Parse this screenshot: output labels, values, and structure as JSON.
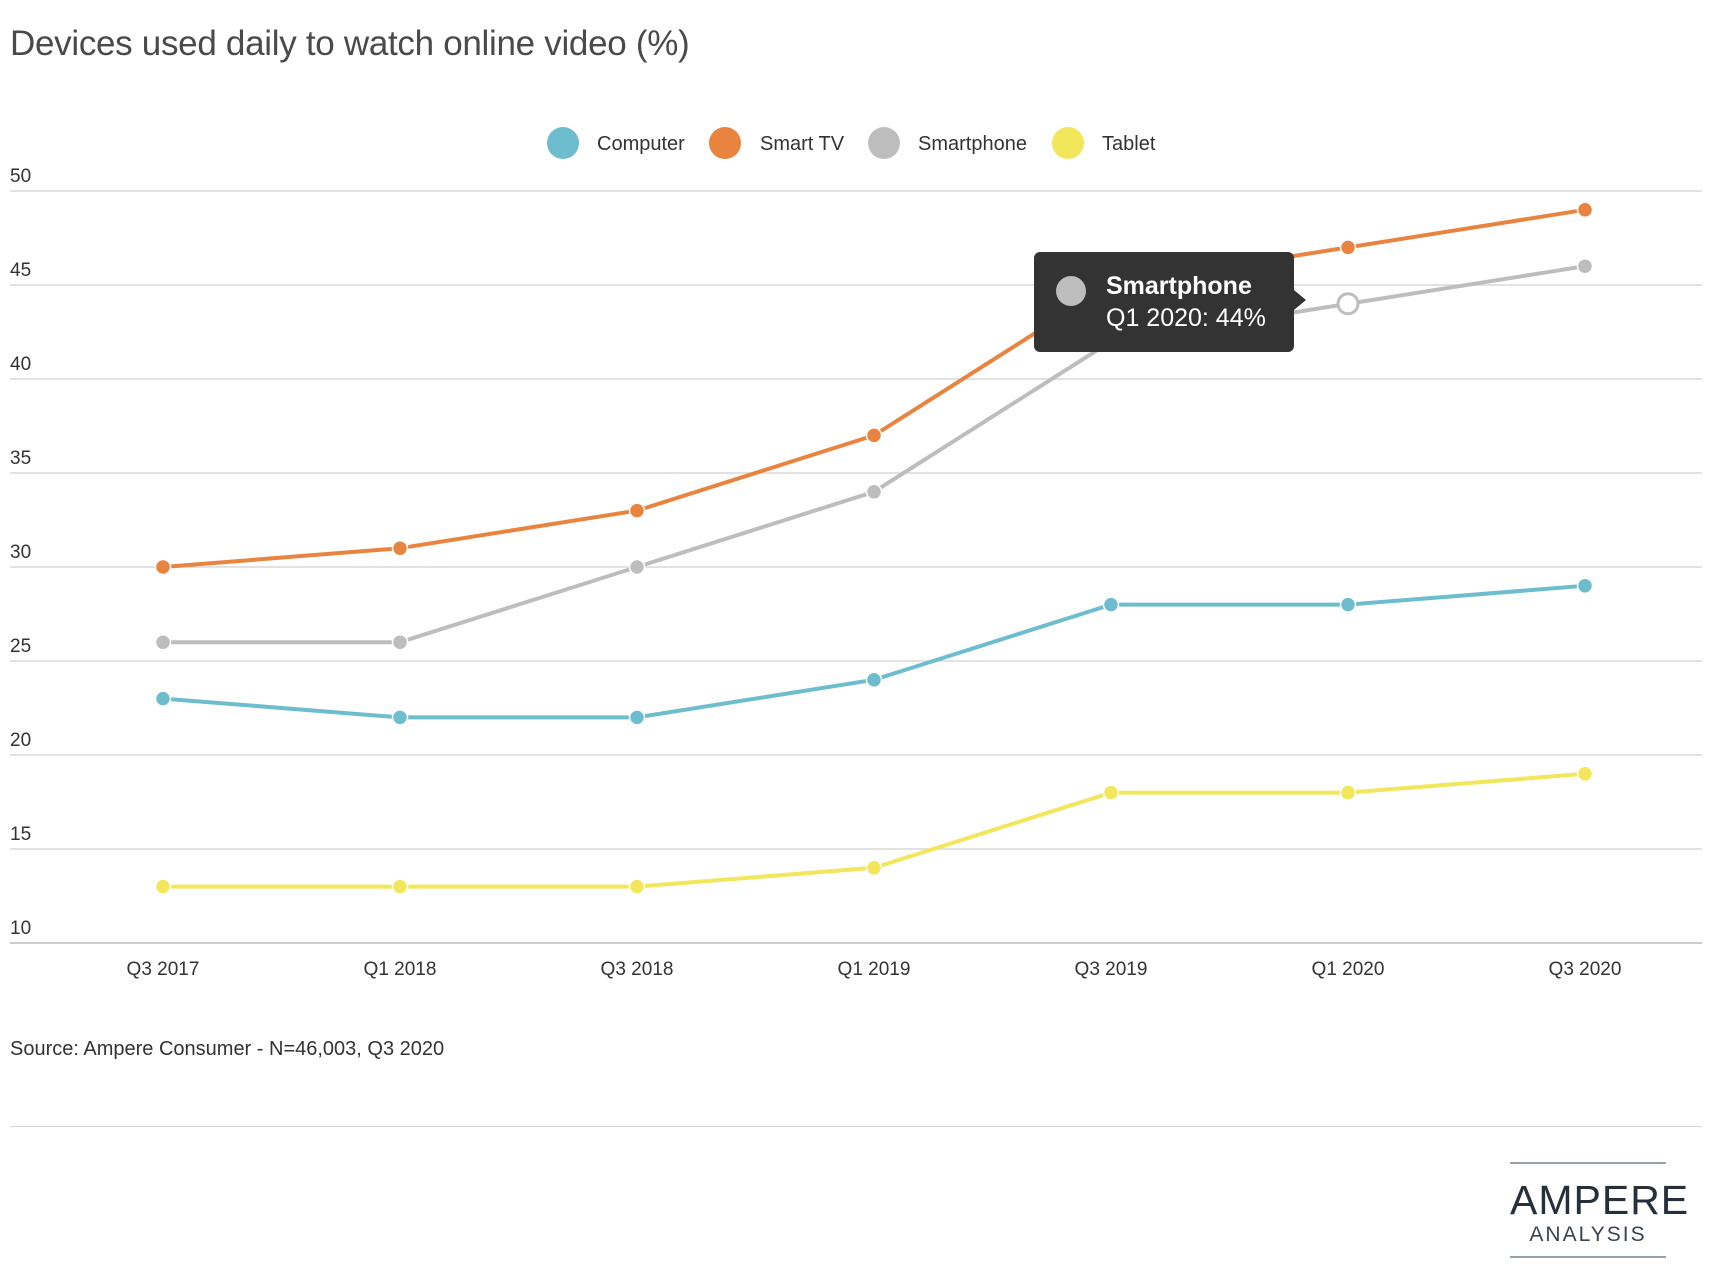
{
  "title": "Devices used daily to watch online video (%)",
  "source": "Source: Ampere Consumer - N=46,003, Q3 2020",
  "logo": {
    "main": "AMPERE",
    "sub": "ANALYSIS"
  },
  "tooltip": {
    "series": "Smartphone",
    "text": "Q1 2020: 44%",
    "color": "#bdbdbd",
    "category_index": 5
  },
  "chart_data": {
    "type": "line",
    "categories": [
      "Q3 2017",
      "Q1 2018",
      "Q3 2018",
      "Q1 2019",
      "Q3 2019",
      "Q1 2020",
      "Q3 2020"
    ],
    "series": [
      {
        "name": "Computer",
        "color": "#6dbdcf",
        "values": [
          23,
          22,
          22,
          24,
          28,
          28,
          29
        ]
      },
      {
        "name": "Smart TV",
        "color": "#e8843f",
        "values": [
          30,
          31,
          33,
          37,
          45,
          47,
          49
        ]
      },
      {
        "name": "Smartphone",
        "color": "#bdbdbd",
        "values": [
          26,
          26,
          30,
          34,
          42,
          44,
          46
        ]
      },
      {
        "name": "Tablet",
        "color": "#f2e65a",
        "values": [
          13,
          13,
          13,
          14,
          18,
          18,
          19
        ]
      }
    ],
    "y_ticks": [
      10,
      15,
      20,
      25,
      30,
      35,
      40,
      45,
      50
    ],
    "ylim": [
      10,
      50
    ],
    "grid": true,
    "legend_position": "top-center"
  }
}
